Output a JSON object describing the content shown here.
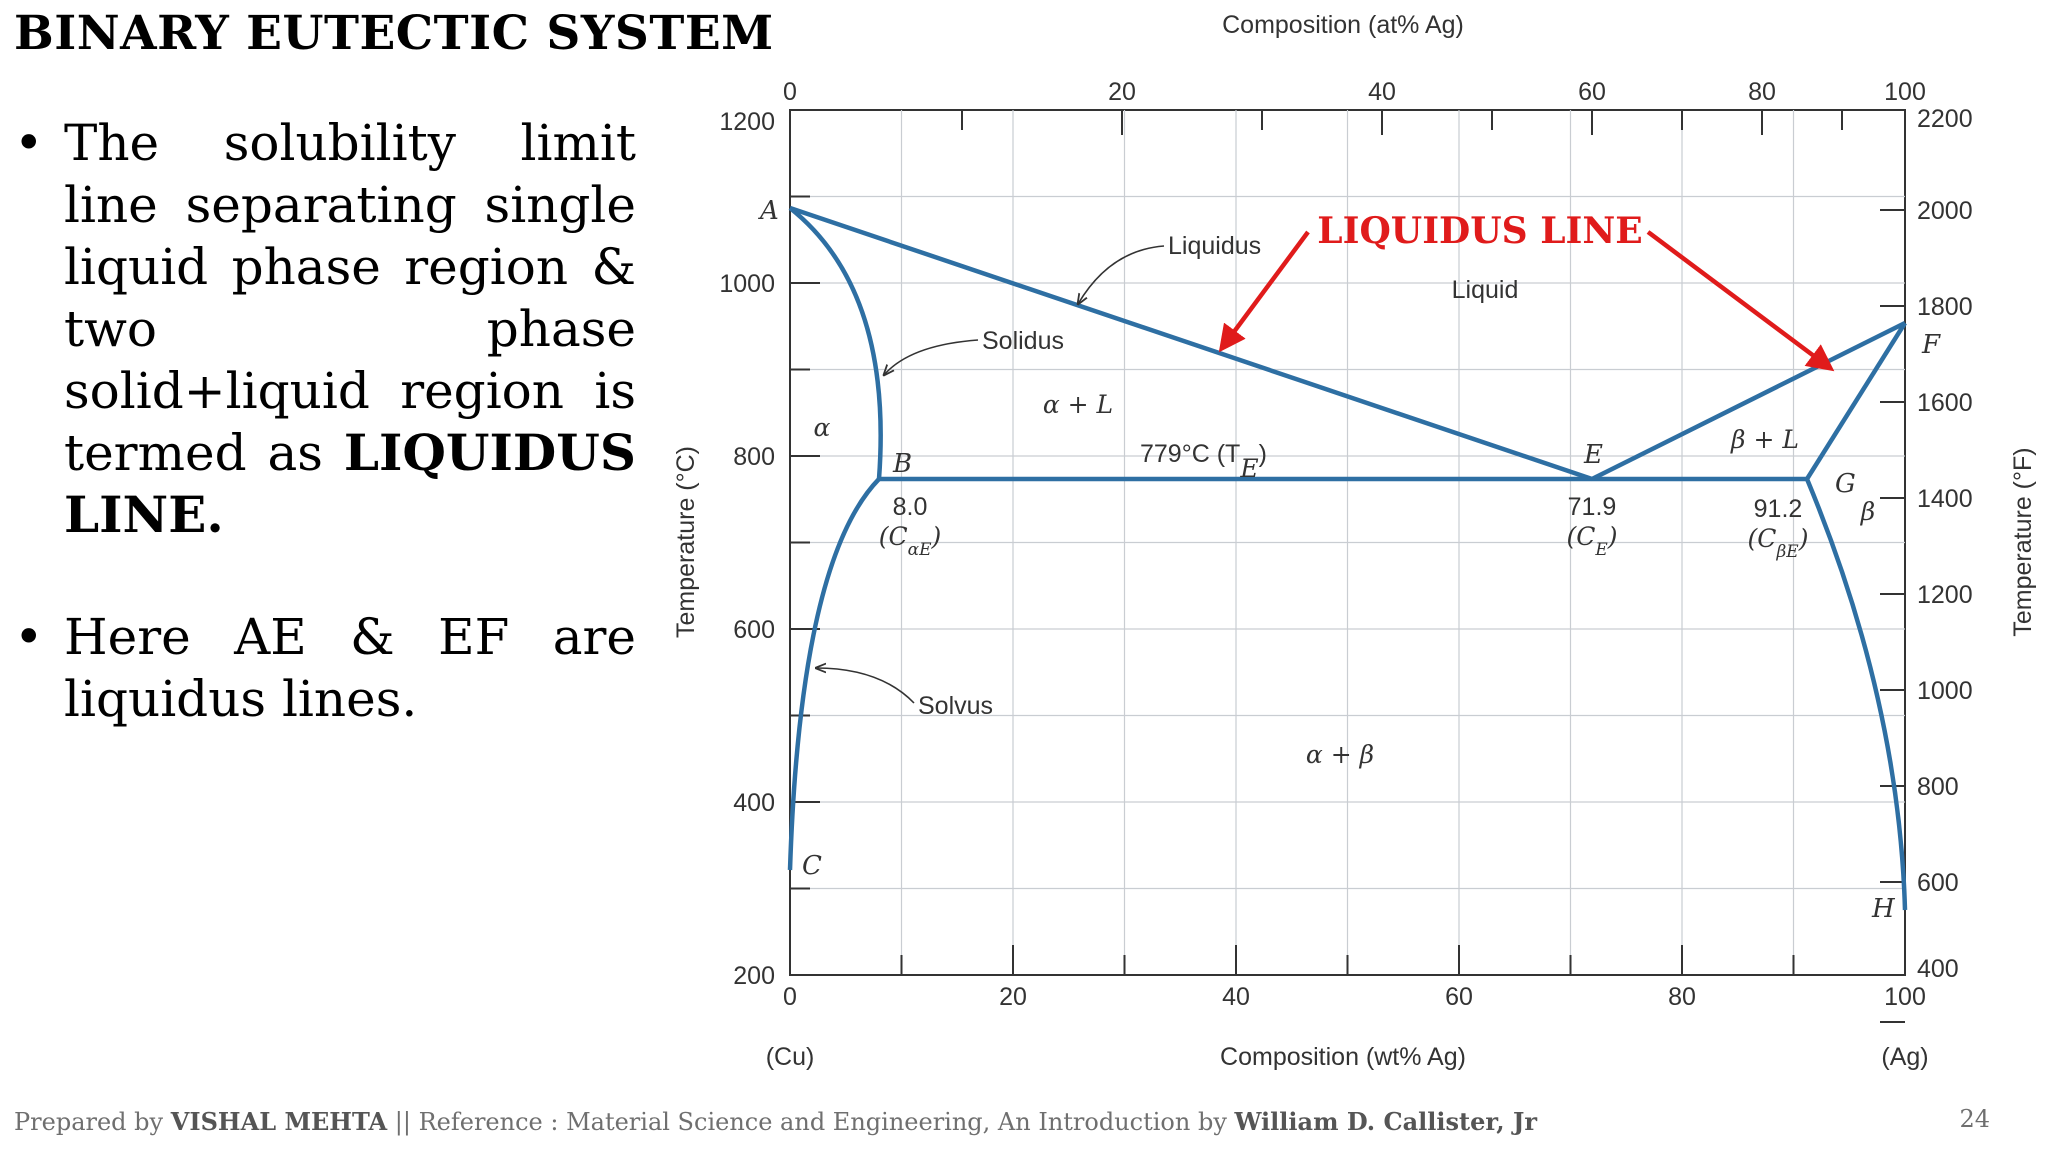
{
  "slide": {
    "title": "BINARY EUTECTIC SYSTEM",
    "bullet1_text": "The solubility limit line separating single liquid phase region & two phase solid+liquid region is termed as",
    "bullet1_bold": "LIQUIDUS LINE.",
    "bullet2_text": "Here AE & EF are liquidus lines.",
    "bullet_glyph": "•"
  },
  "footer": {
    "prefix": "Prepared by",
    "author": "VISHAL MEHTA",
    "reference": " || Reference : Material Science and Engineering, An Introduction by",
    "book_author": "William D. Callister, Jr",
    "page_number": "24"
  },
  "diagram": {
    "top_axis_title": "Composition (at% Ag)",
    "bottom_axis_title": "Composition (wt% Ag)",
    "left_axis_title": "Temperature (°C)",
    "right_axis_title": "Temperature (°F)",
    "left_end_label": "(Cu)",
    "right_end_label": "(Ag)",
    "callout": "LIQUIDUS LINE",
    "colors": {
      "phase_lines": "#2e6fa3",
      "callout": "#e01b1b",
      "frame": "#333333"
    },
    "axis_ticks": {
      "bottom_wt_pct": [
        "0",
        "20",
        "40",
        "60",
        "80",
        "100"
      ],
      "top_at_pct": [
        "0",
        "20",
        "40",
        "60",
        "80",
        "100"
      ],
      "left_celsius": [
        "200",
        "400",
        "600",
        "800",
        "1000",
        "1200"
      ],
      "right_fahrenheit": [
        "400",
        "600",
        "800",
        "1000",
        "1200",
        "1400",
        "1600",
        "1800",
        "2000",
        "2200"
      ]
    },
    "curve_labels": {
      "liquidus": "Liquidus",
      "solidus": "Solidus",
      "solvus": "Solvus"
    },
    "regions": {
      "liquid": "Liquid",
      "alpha": "α",
      "beta": "β",
      "alpha_liquid": "α + L",
      "beta_liquid": "β + L",
      "alpha_beta": "α + β"
    },
    "eutectic_label": "779°C (T",
    "eutectic_sub": "E",
    "points": {
      "A": "A",
      "B": "B",
      "C": "C",
      "E": "E",
      "F": "F",
      "G": "G",
      "H": "H"
    },
    "compositions": {
      "b_value": "8.0",
      "b_sym": "(C",
      "b_sub": "αE",
      "e_value": "71.9",
      "e_sym": "(C",
      "e_sub": "E",
      "g_value": "91.2",
      "g_sym": "(C",
      "g_sub": "βE",
      "close": ")"
    }
  },
  "chart_data": {
    "type": "line",
    "title": "",
    "xlabel": "Composition (wt% Ag)",
    "ylabel": "Temperature (°C)",
    "xlim": [
      0,
      100
    ],
    "ylim": [
      200,
      1200
    ],
    "series": [
      {
        "name": "Liquidus",
        "x": [
          0,
          71.9
        ],
        "y": [
          1085,
          779
        ]
      },
      {
        "name": "Liquidus",
        "x": [
          71.9,
          100
        ],
        "y": [
          779,
          962
        ]
      },
      {
        "name": "Solidus",
        "x": [
          0,
          8.0
        ],
        "y": [
          1085,
          779
        ]
      },
      {
        "name": "Solidus",
        "x": [
          91.2,
          100
        ],
        "y": [
          779,
          962
        ]
      },
      {
        "name": "Solvus",
        "x": [
          8.0,
          2.5,
          0
        ],
        "y": [
          779,
          560,
          320
        ]
      },
      {
        "name": "Solvus",
        "x": [
          91.2,
          99,
          100
        ],
        "y": [
          779,
          400,
          280
        ]
      }
    ],
    "eutectic": {
      "temperature_c": 779,
      "composition_wt_pct": 71.9,
      "alpha_max_wt_pct": 8.0,
      "beta_min_wt_pct": 91.2
    }
  }
}
